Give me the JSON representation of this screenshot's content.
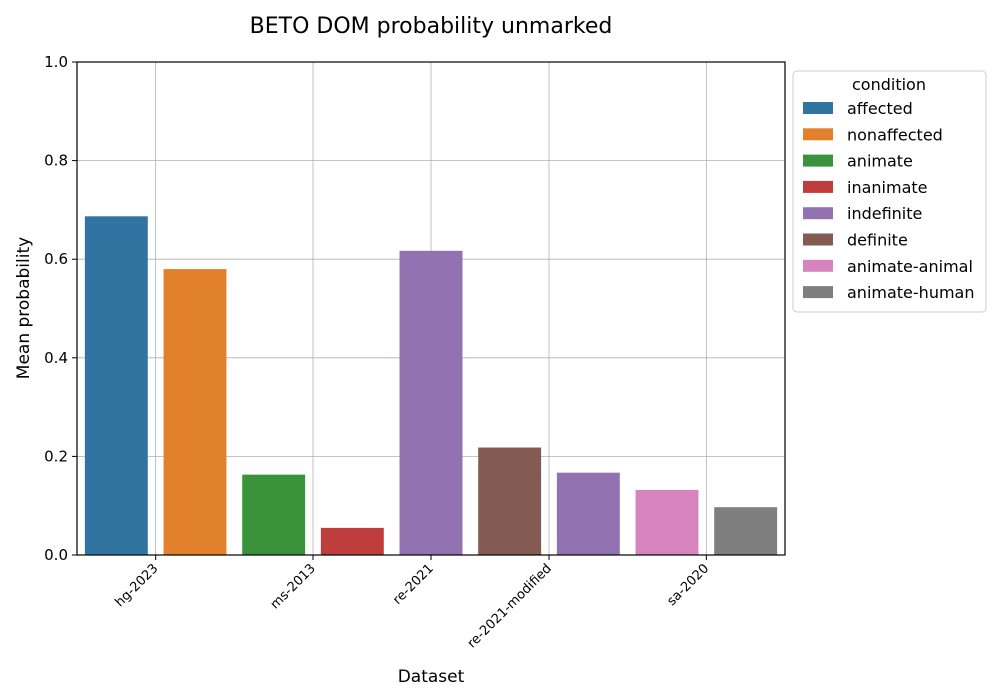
{
  "chart_data": {
    "type": "bar",
    "title": "BETO DOM probability unmarked",
    "xlabel": "Dataset",
    "ylabel": "Mean probability",
    "ylim": [
      0,
      1.0
    ],
    "yticks": [
      "0.0",
      "0.2",
      "0.4",
      "0.6",
      "0.8",
      "1.0"
    ],
    "grid": true,
    "categories": [
      "hg-2023",
      "ms-2013",
      "re-2021",
      "re-2021-modified",
      "sa-2020"
    ],
    "legend": {
      "title": "condition",
      "placement": "outside-right",
      "entries": [
        {
          "label": "affected",
          "color": "#3274a1"
        },
        {
          "label": "nonaffected",
          "color": "#e1812c"
        },
        {
          "label": "animate",
          "color": "#3a923a"
        },
        {
          "label": "inanimate",
          "color": "#c03d3e"
        },
        {
          "label": "indefinite",
          "color": "#9372b2"
        },
        {
          "label": "definite",
          "color": "#845b53"
        },
        {
          "label": "animate-animal",
          "color": "#d684bd"
        },
        {
          "label": "animate-human",
          "color": "#7f7f7f"
        }
      ]
    },
    "bars": [
      {
        "category": "hg-2023",
        "condition": "affected",
        "value": 0.687
      },
      {
        "category": "hg-2023",
        "condition": "nonaffected",
        "value": 0.58
      },
      {
        "category": "ms-2013",
        "condition": "animate",
        "value": 0.163
      },
      {
        "category": "ms-2013",
        "condition": "inanimate",
        "value": 0.055
      },
      {
        "category": "re-2021",
        "condition": "indefinite",
        "value": 0.617
      },
      {
        "category": "re-2021-modified",
        "condition": "definite",
        "value": 0.218
      },
      {
        "category": "re-2021-modified",
        "condition": "indefinite",
        "value": 0.167
      },
      {
        "category": "sa-2020",
        "condition": "animate-animal",
        "value": 0.132
      },
      {
        "category": "sa-2020",
        "condition": "animate-human",
        "value": 0.097
      }
    ]
  }
}
